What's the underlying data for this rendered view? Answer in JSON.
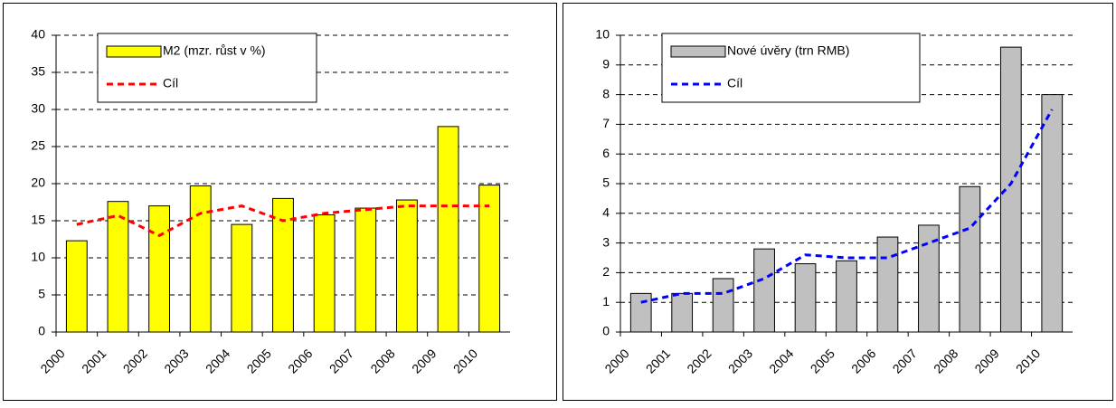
{
  "chart_data": [
    {
      "type": "bar",
      "categories": [
        "2000",
        "2001",
        "2002",
        "2003",
        "2004",
        "2005",
        "2006",
        "2007",
        "2008",
        "2009",
        "2010"
      ],
      "series": [
        {
          "name": "M2 (mzr. růst v %)",
          "type": "bar",
          "color": "#ffff00",
          "values": [
            12.3,
            17.6,
            17.0,
            19.7,
            14.5,
            18.0,
            15.8,
            16.7,
            17.8,
            27.7,
            19.8
          ]
        },
        {
          "name": "Cíl",
          "type": "line",
          "color": "#ff0000",
          "values": [
            14.5,
            15.7,
            13.0,
            16.0,
            17.0,
            15.0,
            16.0,
            16.5,
            17.0,
            17.0,
            17.0
          ]
        }
      ],
      "ylim": [
        0,
        40
      ],
      "yticks": [
        0,
        5,
        10,
        15,
        20,
        25,
        30,
        35,
        40
      ],
      "grid": true,
      "legend": "top-left"
    },
    {
      "type": "bar",
      "categories": [
        "2000",
        "2001",
        "2002",
        "2003",
        "2004",
        "2005",
        "2006",
        "2007",
        "2008",
        "2009",
        "2010"
      ],
      "series": [
        {
          "name": "Nové úvěry (trn RMB)",
          "type": "bar",
          "color": "#c0c0c0",
          "values": [
            1.3,
            1.3,
            1.8,
            2.8,
            2.3,
            2.4,
            3.2,
            3.6,
            4.9,
            9.6,
            8.0
          ]
        },
        {
          "name": "Cíl",
          "type": "line",
          "color": "#0000ff",
          "values": [
            1.0,
            1.3,
            1.3,
            1.8,
            2.6,
            2.5,
            2.5,
            3.0,
            3.5,
            5.0,
            7.5
          ]
        }
      ],
      "ylim": [
        0,
        10
      ],
      "yticks": [
        0,
        1,
        2,
        3,
        4,
        5,
        6,
        7,
        8,
        9,
        10
      ],
      "grid": true,
      "legend": "top-left"
    }
  ]
}
